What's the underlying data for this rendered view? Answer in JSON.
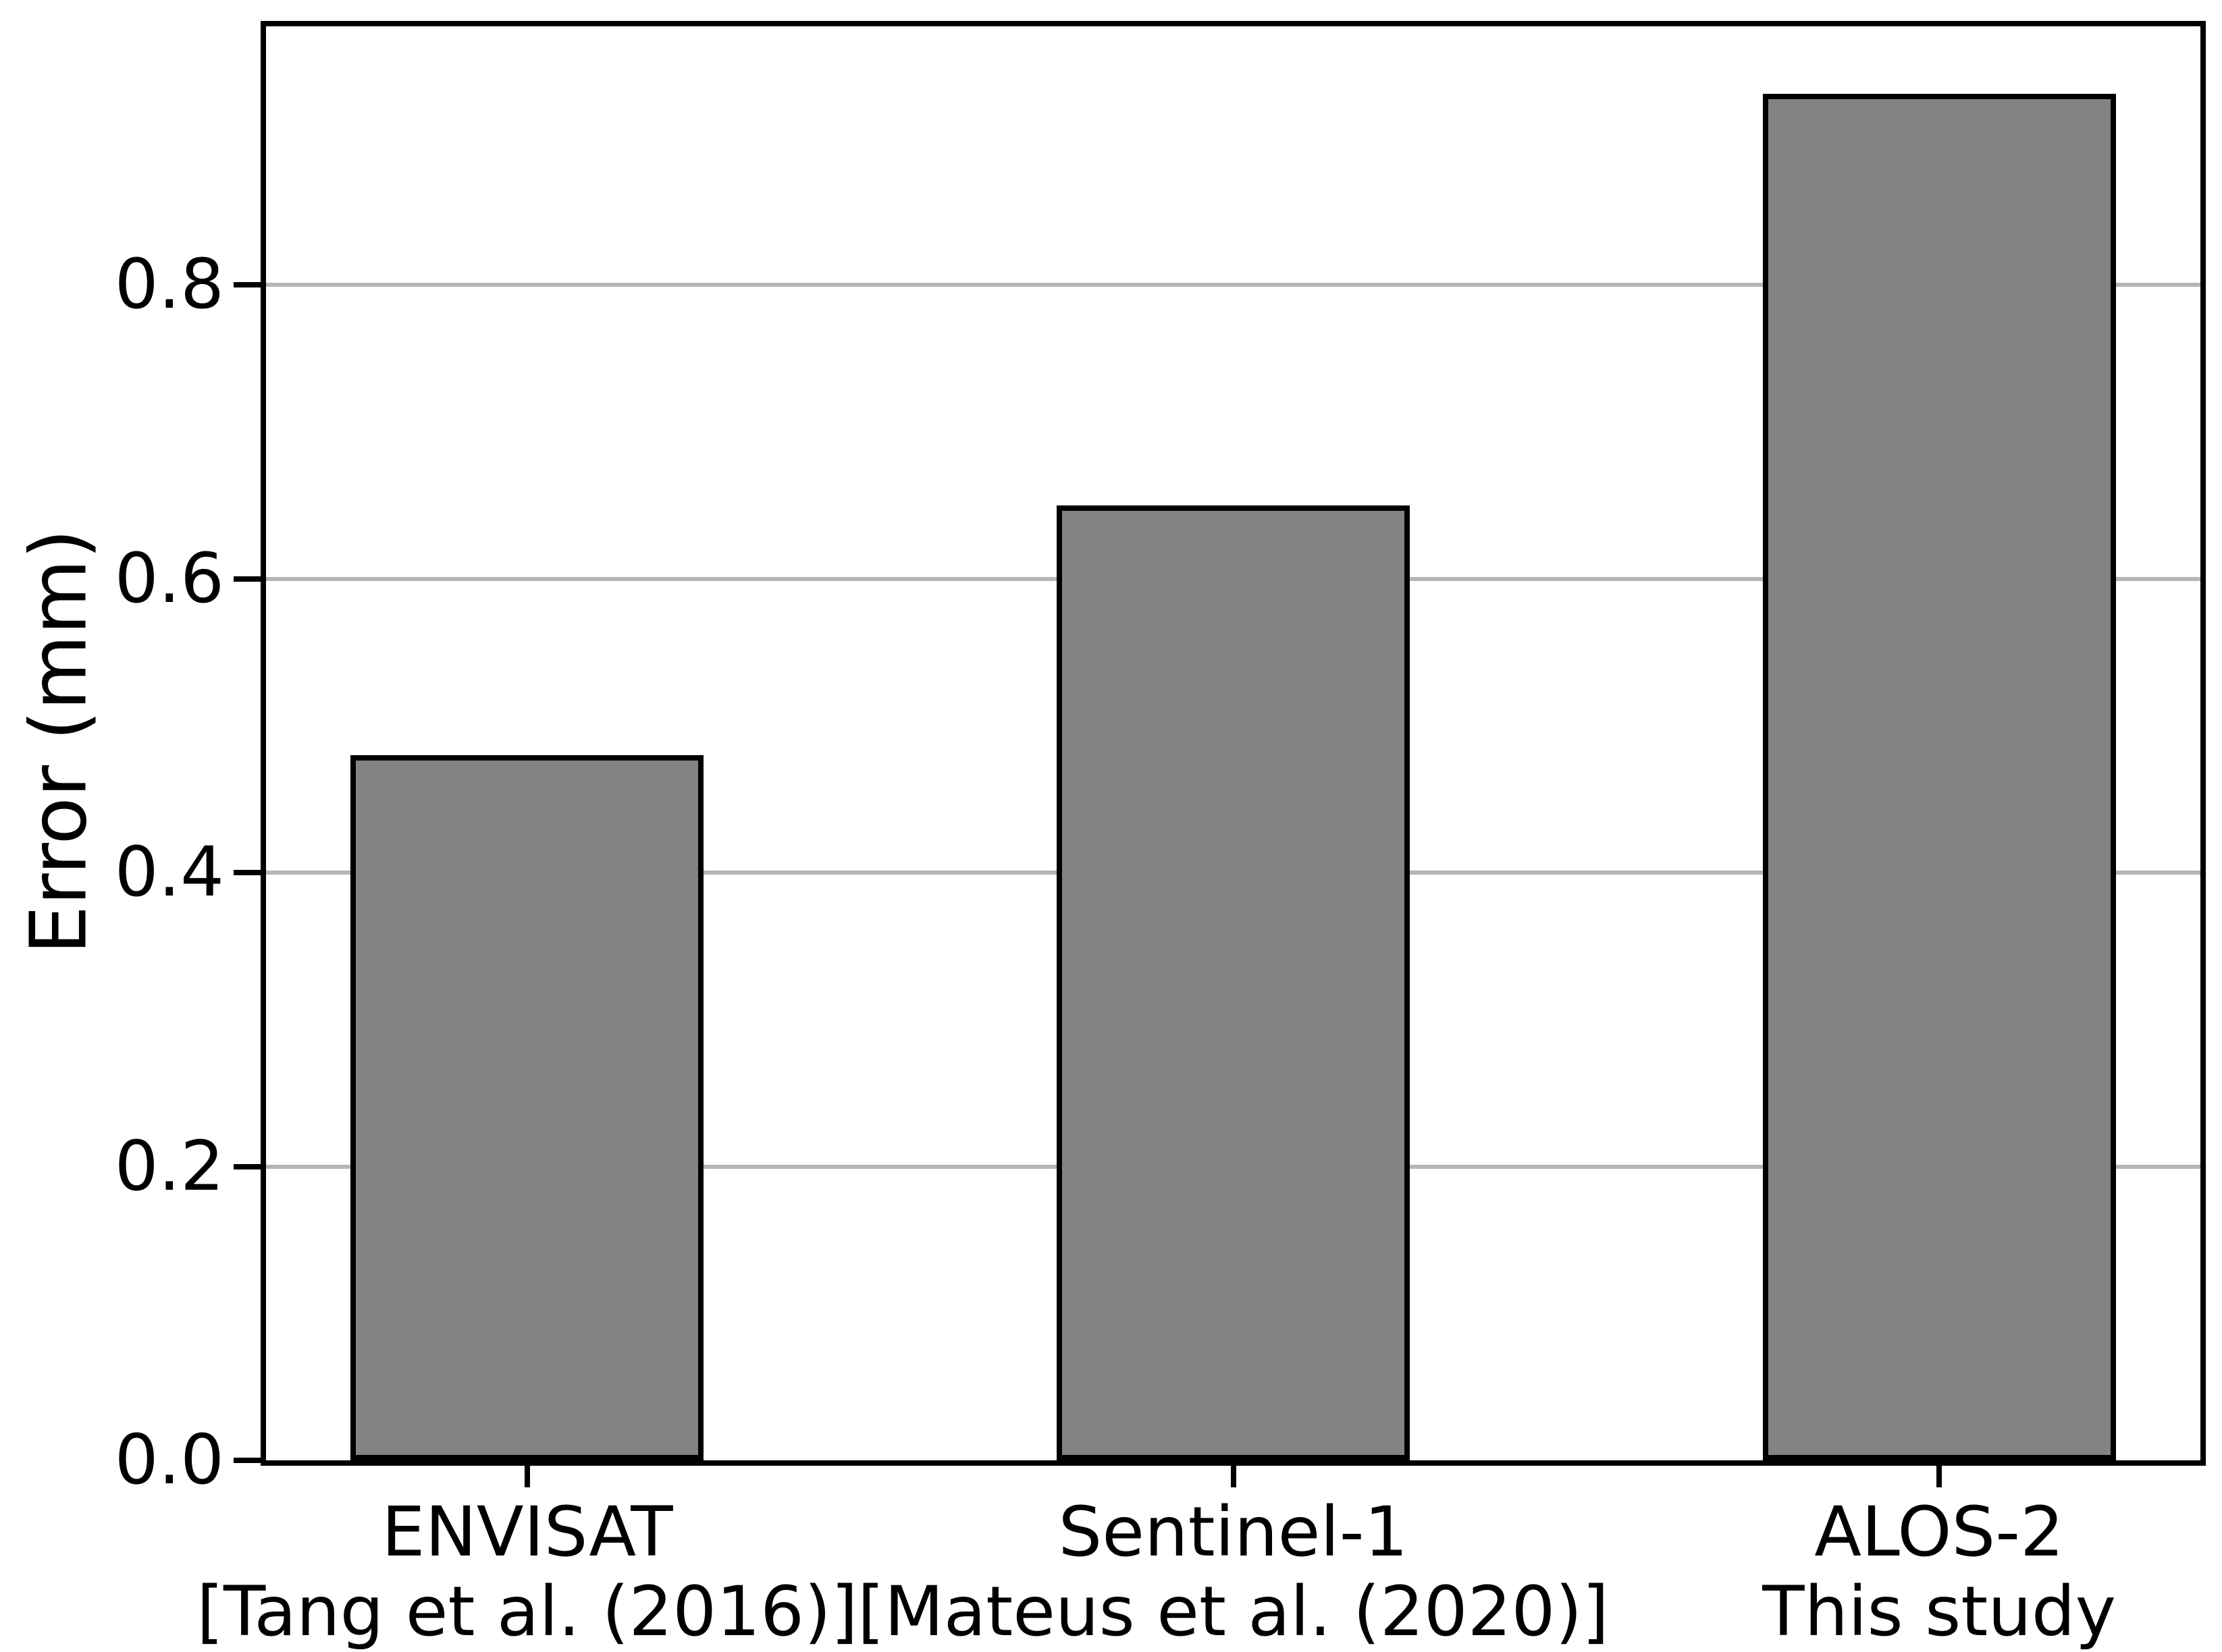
{
  "figure": {
    "background_color": "#ffffff",
    "text_color": "#000000"
  },
  "chart_data": {
    "type": "bar",
    "title": "",
    "xlabel": "",
    "ylabel": "Error (mm)",
    "categories": [
      "ENVISAT",
      "Sentinel-1",
      "ALOS-2"
    ],
    "bars": [
      {
        "label_line1": "ENVISAT",
        "label_line2": "[Tang et al. (2016)]",
        "value": 0.48
      },
      {
        "label_line1": "Sentinel-1",
        "label_line2": "[Mateus et al. (2020)]",
        "value": 0.65
      },
      {
        "label_line1": "ALOS-2",
        "label_line2": "This study",
        "value": 0.93
      }
    ],
    "values": [
      0.48,
      0.65,
      0.93
    ],
    "x": [
      0,
      1,
      2
    ],
    "bar_width": 0.5,
    "xlim": [
      -0.37,
      2.37
    ],
    "ylim": [
      0,
      0.976
    ],
    "yticks": [
      0.0,
      0.2,
      0.4,
      0.6,
      0.8
    ],
    "ytick_labels": [
      "0.0",
      "0.2",
      "0.4",
      "0.6",
      "0.8"
    ],
    "grid": "horizontal",
    "legend": "none",
    "bar_color": "#838383",
    "bar_edge_color": "#000000",
    "grid_color": "#b5b5b5",
    "axis_color": "#000000"
  }
}
